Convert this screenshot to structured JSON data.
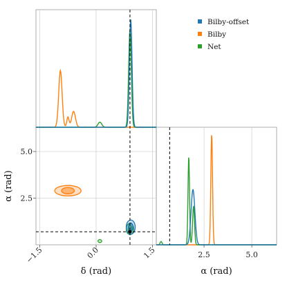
{
  "colors": {
    "bilby_offset": "#1f77b4",
    "bilby": "#ff7f0e",
    "net": "#2ca02c",
    "frame": "#999999",
    "grid": "#cccccc",
    "truth": "#000000"
  },
  "legend": [
    {
      "label": "Bilby-offset",
      "color": "#1f77b4"
    },
    {
      "label": "Bilby",
      "color": "#ff7f0e"
    },
    {
      "label": "Net",
      "color": "#2ca02c"
    }
  ],
  "axes": {
    "delta_label": "δ (rad)",
    "alpha_label": "α (rad)",
    "delta_ticks": [
      {
        "label": "−1.5",
        "value": -1.5
      },
      {
        "label": "0.0",
        "value": 0.0
      },
      {
        "label": "1.5",
        "value": 1.5
      }
    ],
    "alpha_ticks": [
      {
        "label": "2.5",
        "value": 2.5
      },
      {
        "label": "5.0",
        "value": 5.0
      }
    ]
  },
  "chart_data": {
    "type": "corner",
    "parameters": [
      "delta",
      "alpha"
    ],
    "delta_range": [
      -1.6,
      1.6
    ],
    "alpha_range": [
      0.0,
      6.3
    ],
    "grid": true,
    "legend_position": "top-right",
    "truth": {
      "delta": 0.9,
      "alpha": 0.7
    },
    "marginals": {
      "delta": [
        {
          "series": "Bilby",
          "peaks": [
            {
              "center": -0.95,
              "width": 0.045,
              "height": 1.0
            },
            {
              "center": -0.6,
              "width": 0.05,
              "height": 0.28
            },
            {
              "center": -0.75,
              "width": 0.03,
              "height": 0.18
            }
          ]
        },
        {
          "series": "Net",
          "peaks": [
            {
              "center": 0.9,
              "width": 0.035,
              "height": 1.72
            },
            {
              "center": 0.1,
              "width": 0.05,
              "height": 0.09
            }
          ]
        },
        {
          "series": "Bilby-offset",
          "peaks": [
            {
              "center": 0.92,
              "width": 0.035,
              "height": 1.9
            }
          ]
        }
      ],
      "alpha": [
        {
          "series": "Bilby",
          "peaks": [
            {
              "center": 2.9,
              "width": 0.045,
              "height": 1.0
            }
          ]
        },
        {
          "series": "Net",
          "peaks": [
            {
              "center": 1.7,
              "width": 0.04,
              "height": 0.8
            },
            {
              "center": 1.95,
              "width": 0.05,
              "height": 0.35
            },
            {
              "center": 0.25,
              "width": 0.05,
              "height": 0.03
            }
          ]
        },
        {
          "series": "Bilby-offset",
          "peaks": [
            {
              "center": 1.92,
              "width": 0.1,
              "height": 0.5
            }
          ]
        }
      ]
    },
    "joint": [
      {
        "series": "Bilby",
        "center": [
          -0.75,
          2.9
        ],
        "contours": [
          [
            0.17,
            0.17
          ],
          [
            0.35,
            0.28
          ]
        ]
      },
      {
        "series": "Net",
        "center": [
          0.9,
          0.85
        ],
        "contours": [
          [
            0.05,
            0.18
          ],
          [
            0.1,
            0.3
          ]
        ]
      },
      {
        "series": "Bilby-offset",
        "center": [
          0.92,
          0.95
        ],
        "contours": [
          [
            0.06,
            0.22
          ],
          [
            0.12,
            0.38
          ]
        ]
      },
      {
        "series": "Net",
        "center": [
          0.1,
          0.2
        ],
        "contours": [
          [
            0.05,
            0.08
          ]
        ]
      }
    ]
  }
}
